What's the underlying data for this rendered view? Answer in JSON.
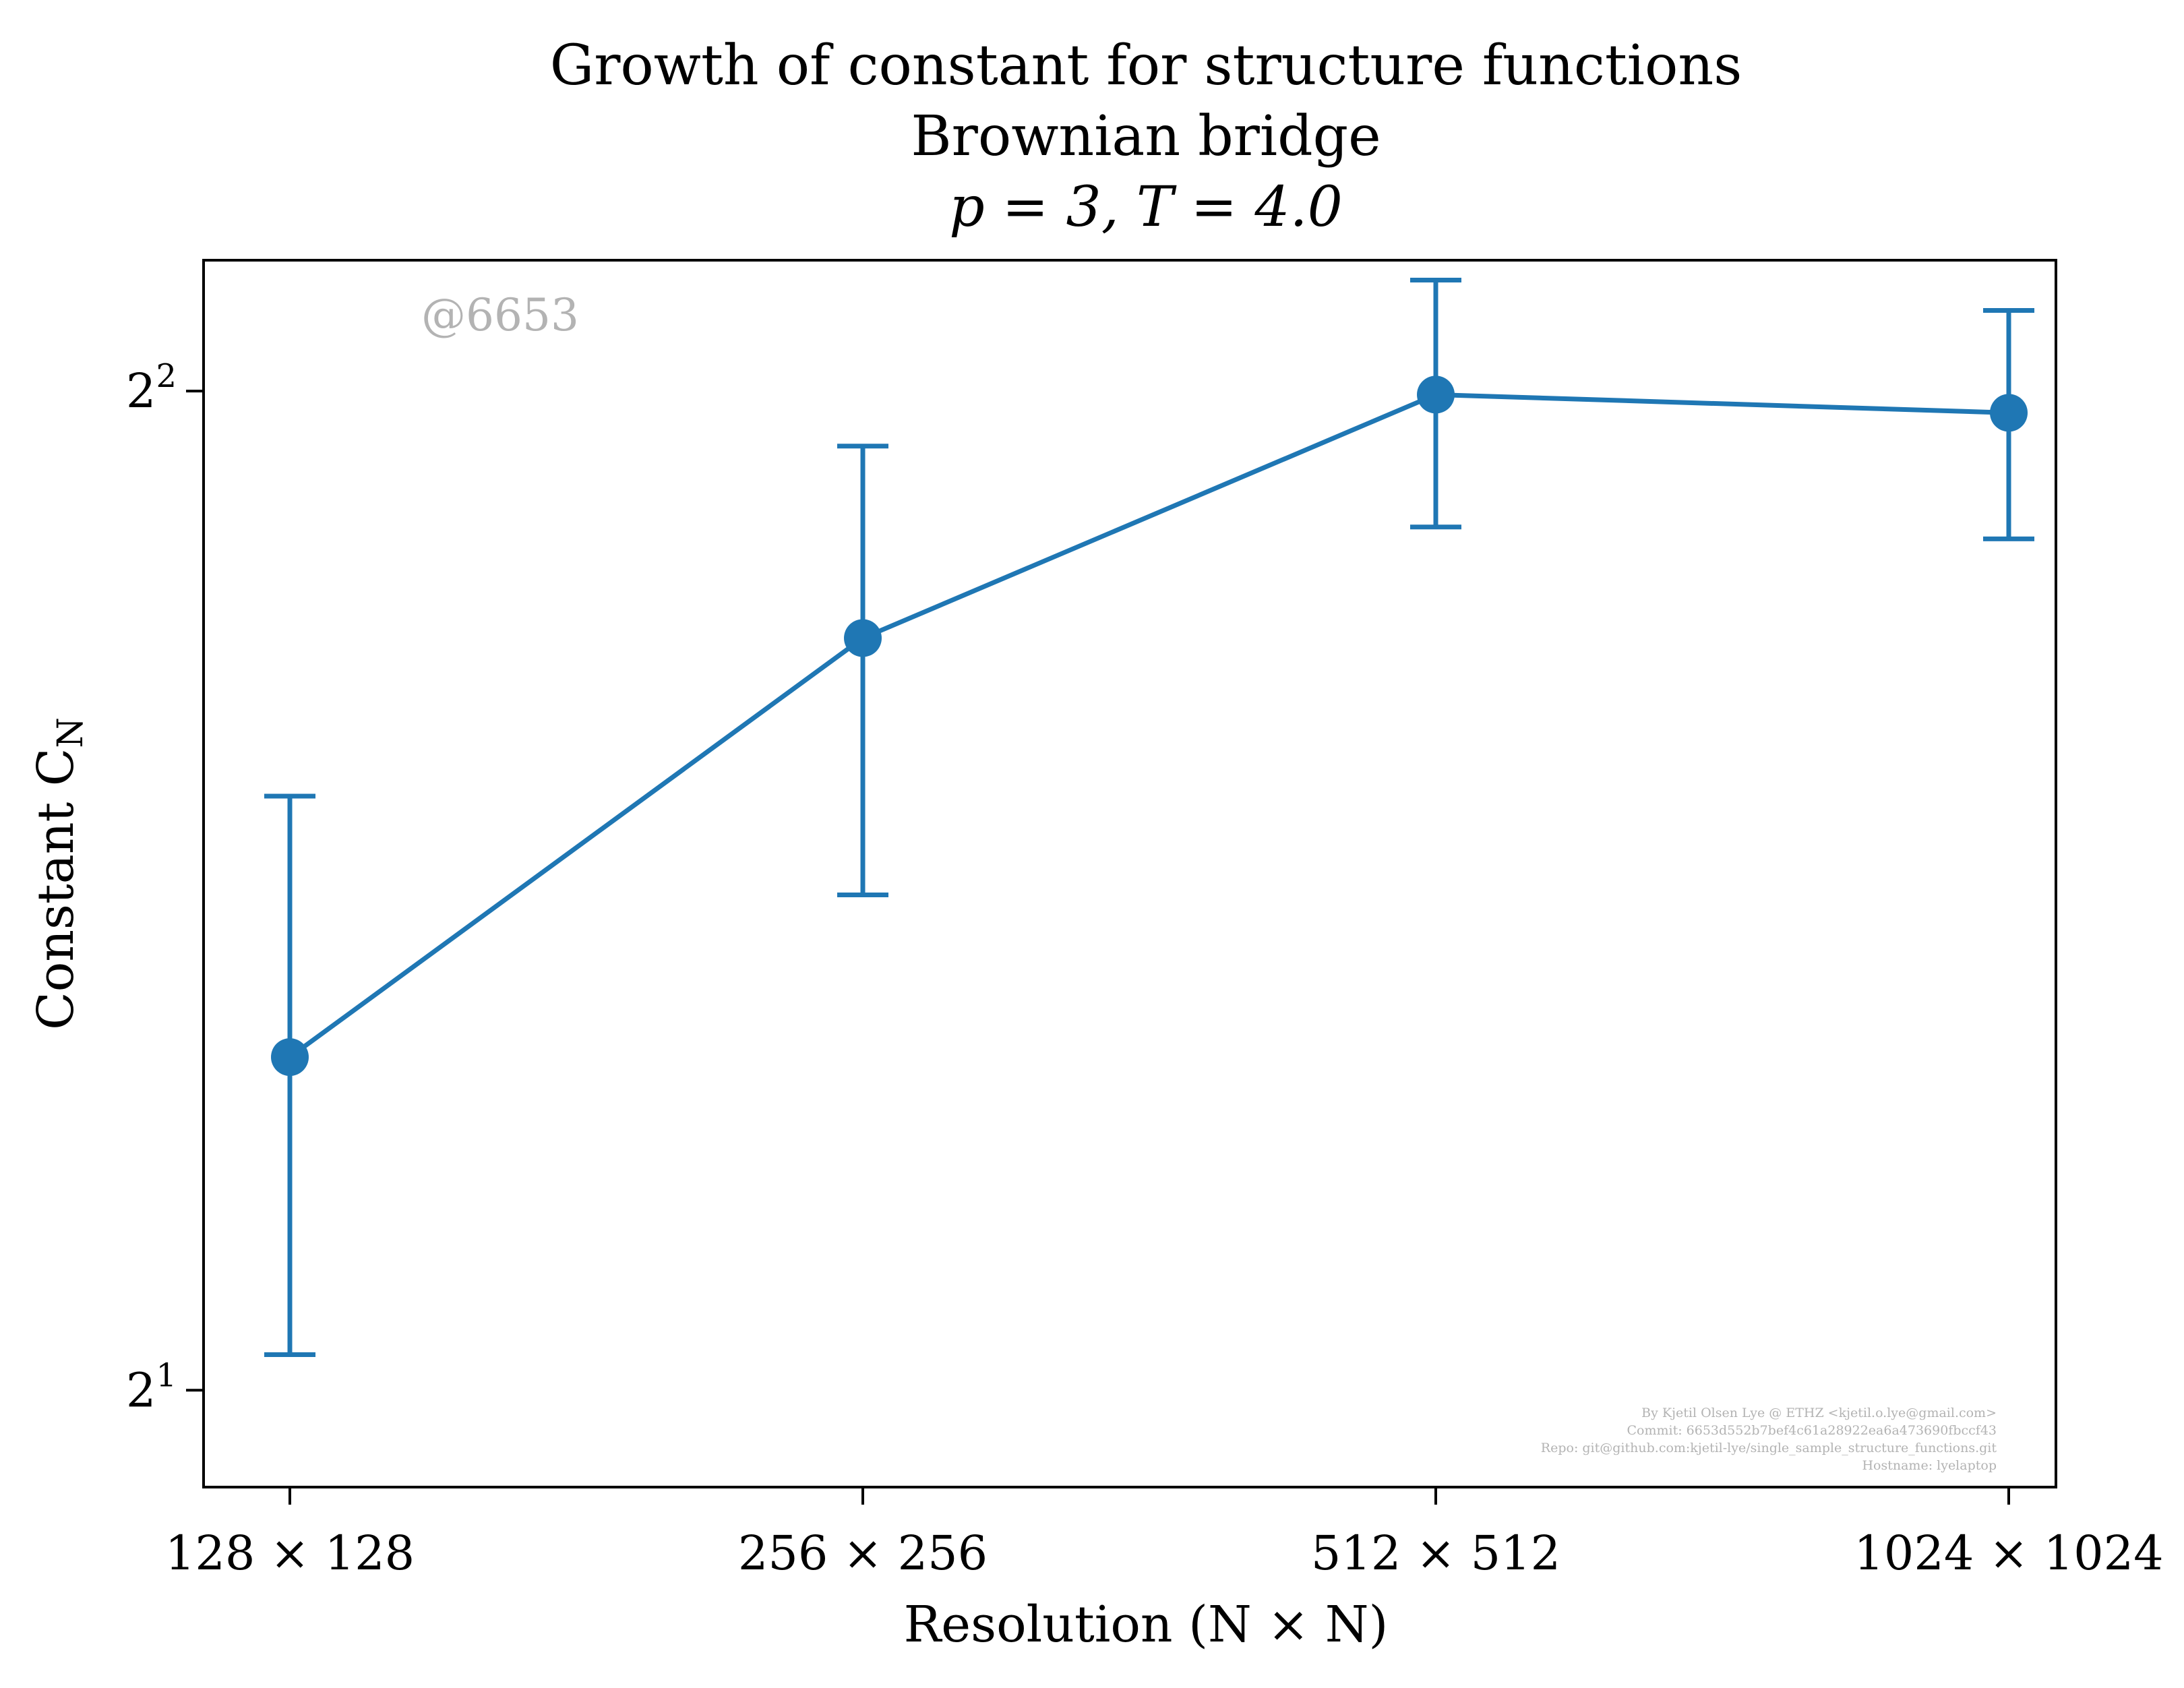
{
  "chart_data": {
    "type": "line",
    "title_lines": [
      "Growth of constant for structure functions",
      "Brownian bridge",
      "p = 3, T = 4.0"
    ],
    "xlabel": "Resolution (N × N)",
    "ylabel": "Constant C",
    "ylabel_subscript": "N",
    "categories": [
      "128 × 128",
      "256 × 256",
      "512 × 512",
      "1024 × 1024"
    ],
    "y_scale": "log2",
    "ylim": [
      1.87,
      4.38
    ],
    "yticks": [
      {
        "value": 2,
        "label_base": "2",
        "label_exp": "1"
      },
      {
        "value": 4,
        "label_base": "2",
        "label_exp": "2"
      }
    ],
    "series": [
      {
        "values": [
          2.52,
          3.37,
          3.99,
          3.94
        ],
        "err_lower": [
          2.05,
          2.82,
          3.64,
          3.61
        ],
        "err_upper": [
          3.02,
          3.85,
          4.32,
          4.23
        ],
        "color": "#1f77b4",
        "marker": "circle"
      }
    ],
    "grid": false,
    "watermark": "@6653",
    "credits": [
      "By Kjetil Olsen Lye @ ETHZ <kjetil.o.lye@gmail.com>",
      "Commit: 6653d552b7bef4c61a28922ea6a473690fbccf43",
      "Repo: git@github.com:kjetil-lye/single_sample_structure_functions.git",
      "Hostname: lyelaptop"
    ]
  }
}
